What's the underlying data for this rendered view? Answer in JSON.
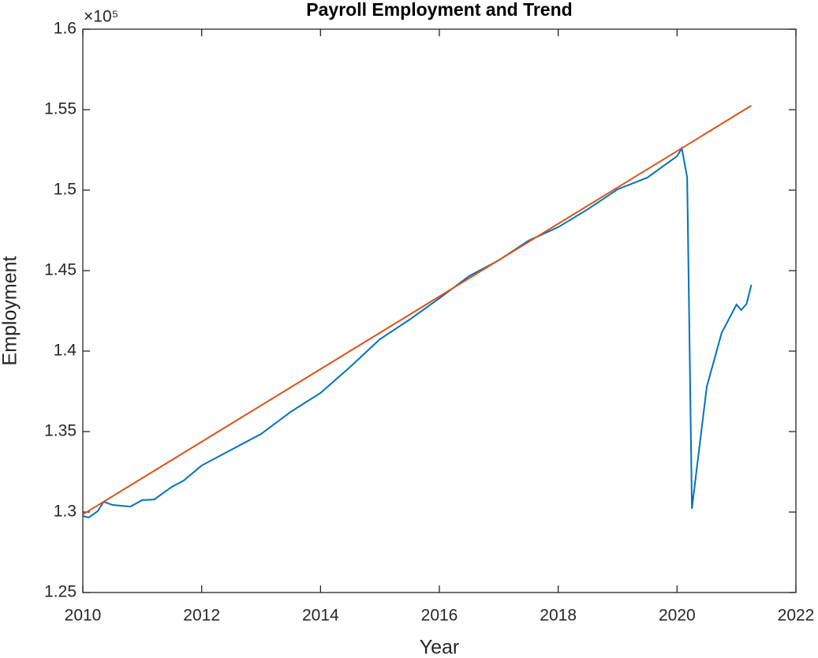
{
  "chart_data": {
    "type": "line",
    "title": "Payroll Employment and Trend",
    "x_label": "Year",
    "y_label": "Employment",
    "y_multiplier": "×10⁵",
    "xlim": [
      2010,
      2022
    ],
    "xticks": [
      2010,
      2012,
      2014,
      2016,
      2018,
      2020,
      2022
    ],
    "ylim": [
      1.25,
      1.6
    ],
    "yticks": [
      1.25,
      1.3,
      1.35,
      1.4,
      1.45,
      1.5,
      1.55,
      1.6
    ],
    "grid": false,
    "series": [
      {
        "color": "#0072BD",
        "x": [
          2010.0,
          2010.1,
          2010.25,
          2010.35,
          2010.5,
          2010.8,
          2011.0,
          2011.2,
          2011.5,
          2011.7,
          2012.0,
          2012.5,
          2013.0,
          2013.5,
          2014.0,
          2014.5,
          2015.0,
          2015.5,
          2016.0,
          2016.5,
          2017.0,
          2017.5,
          2018.0,
          2018.5,
          2019.0,
          2019.5,
          2020.0,
          2020.08,
          2020.17,
          2020.25,
          2020.33,
          2020.5,
          2020.75,
          2021.0,
          2021.08,
          2021.17,
          2021.25
        ],
        "values": [
          1.2975,
          1.2966,
          1.3005,
          1.3064,
          1.3044,
          1.3034,
          1.3074,
          1.3078,
          1.3157,
          1.3196,
          1.3289,
          1.3387,
          1.3485,
          1.3623,
          1.374,
          1.3902,
          1.4074,
          1.4196,
          1.4328,
          1.4466,
          1.4564,
          1.4686,
          1.477,
          1.4882,
          1.5005,
          1.5078,
          1.5211,
          1.526,
          1.5078,
          1.302,
          1.3265,
          1.3779,
          1.4113,
          1.4289,
          1.4255,
          1.4294,
          1.4412
        ]
      },
      {
        "color": "#D95319",
        "x": [
          2010.0,
          2021.25
        ],
        "values": [
          1.2985,
          1.5525
        ]
      }
    ]
  }
}
